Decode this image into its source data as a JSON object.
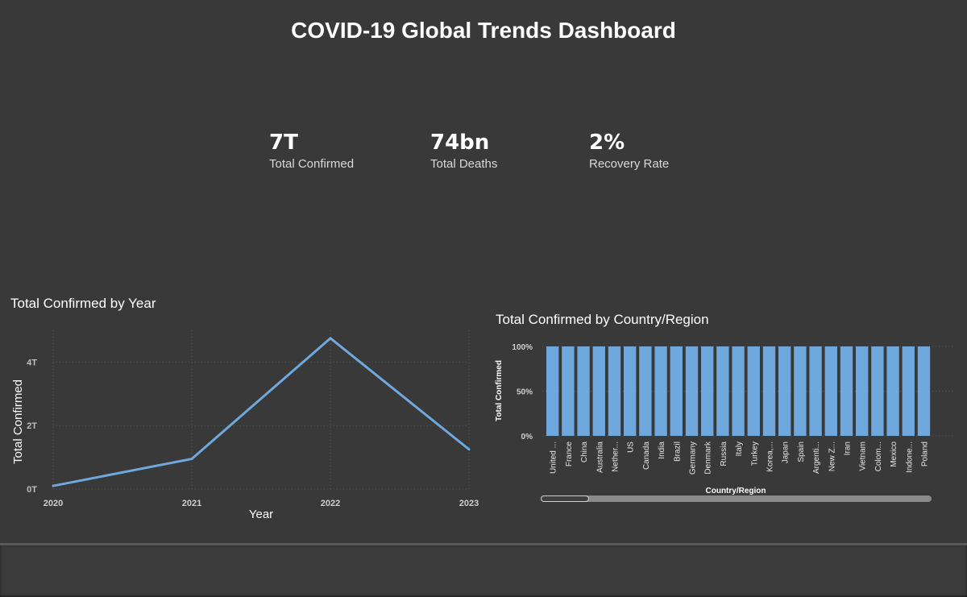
{
  "dashboard": {
    "title": "COVID-19 Global Trends Dashboard"
  },
  "kpis": [
    {
      "value": "7T",
      "label": "Total Confirmed"
    },
    {
      "value": "74bn",
      "label": "Total Deaths"
    },
    {
      "value": "2%",
      "label": "Recovery Rate"
    }
  ],
  "colors": {
    "background": "#393939",
    "series": "#6fa8dc",
    "gridline": "#5a5a5a"
  },
  "chart_data": [
    {
      "type": "line",
      "title": "Total Confirmed by Year",
      "xlabel": "Year",
      "ylabel": "Total Confirmed",
      "x": [
        "2020",
        "2021",
        "2022",
        "2023"
      ],
      "values": [
        0.1,
        0.95,
        4.75,
        1.25
      ],
      "yticks": [
        "0T",
        "2T",
        "4T"
      ],
      "ytick_values": [
        0,
        2,
        4
      ],
      "ylim": [
        0,
        5
      ],
      "grid": true
    },
    {
      "type": "bar",
      "title": "Total Confirmed by Country/Region",
      "xlabel": "Country/Region",
      "ylabel": "Total Confirmed",
      "categories": [
        "United ...",
        "France",
        "China",
        "Australia",
        "Nether...",
        "US",
        "Canada",
        "India",
        "Brazil",
        "Germany",
        "Denmark",
        "Russia",
        "Italy",
        "Turkey",
        "Korea,...",
        "Japan",
        "Spain",
        "Argenti...",
        "New Z...",
        "Iran",
        "Vietnam",
        "Colom...",
        "Mexico",
        "Indone...",
        "Poland"
      ],
      "values": [
        100,
        100,
        100,
        100,
        100,
        100,
        100,
        100,
        100,
        100,
        100,
        100,
        100,
        100,
        100,
        100,
        100,
        100,
        100,
        100,
        100,
        100,
        100,
        100,
        100
      ],
      "yticks": [
        "0%",
        "50%",
        "100%"
      ],
      "ytick_values": [
        0,
        50,
        100
      ],
      "ylim": [
        0,
        100
      ],
      "grid": true
    }
  ]
}
